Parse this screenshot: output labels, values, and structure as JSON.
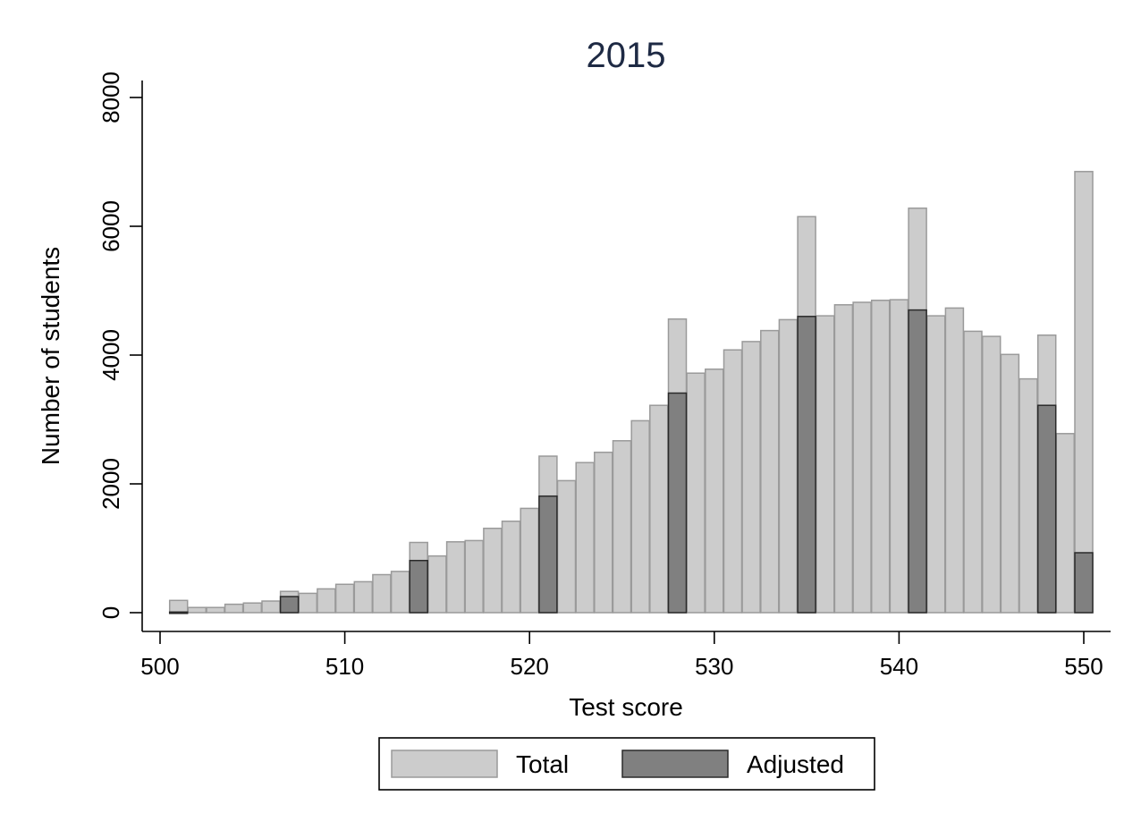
{
  "chart_data": {
    "type": "bar",
    "title": "2015",
    "xlabel": "Test score",
    "ylabel": "Number of students",
    "xlim": [
      500,
      551
    ],
    "ylim": [
      0,
      8000
    ],
    "xticks": [
      "500",
      "510",
      "520",
      "530",
      "540",
      "550"
    ],
    "yticks": [
      "0",
      "2000",
      "4000",
      "6000",
      "8000"
    ],
    "grid": false,
    "legend_placement": "bottom",
    "colors": {
      "total": "#cccccc",
      "total_edge": "#9a9a9a",
      "adjusted": "#808080",
      "adjusted_edge": "#2a2a2a"
    },
    "series": [
      {
        "name": "Total",
        "x": [
          501,
          502,
          503,
          504,
          505,
          506,
          507,
          508,
          509,
          510,
          511,
          512,
          513,
          514,
          515,
          516,
          517,
          518,
          519,
          520,
          521,
          522,
          523,
          524,
          525,
          526,
          527,
          528,
          529,
          530,
          531,
          532,
          533,
          534,
          535,
          536,
          537,
          538,
          539,
          540,
          541,
          542,
          543,
          544,
          545,
          546,
          547,
          548,
          549,
          550
        ],
        "values": [
          190,
          80,
          80,
          130,
          150,
          180,
          330,
          300,
          370,
          440,
          480,
          590,
          640,
          1090,
          880,
          1100,
          1120,
          1310,
          1420,
          1620,
          2430,
          2050,
          2330,
          2490,
          2670,
          2980,
          3220,
          4560,
          3720,
          3780,
          4080,
          4210,
          4380,
          4550,
          6150,
          4610,
          4780,
          4820,
          4850,
          4860,
          6280,
          4610,
          4730,
          4370,
          4290,
          4010,
          3630,
          4310,
          2780,
          6850
        ]
      },
      {
        "name": "Adjusted",
        "x": [
          501,
          507,
          514,
          521,
          528,
          535,
          541,
          548,
          550
        ],
        "values": [
          10,
          250,
          810,
          1810,
          3410,
          4600,
          4700,
          3220,
          930
        ]
      }
    ]
  },
  "legend": {
    "total_label": "Total",
    "adjusted_label": "Adjusted"
  }
}
